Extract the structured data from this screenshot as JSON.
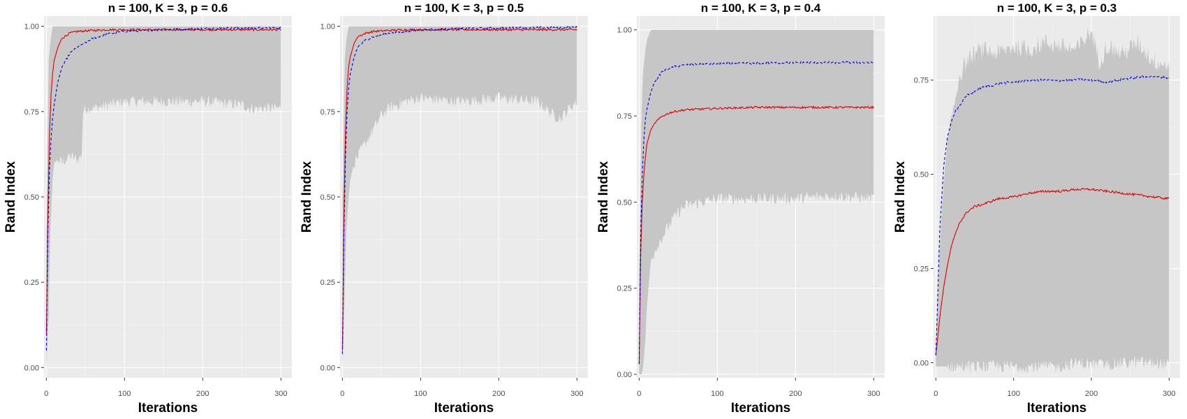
{
  "figure": {
    "colors": {
      "panel_bg": "#ebebeb",
      "grid_major": "#ffffff",
      "ribbon": "#c6c6c6",
      "red_series": "#e00000",
      "blue_series": "#0000e0",
      "tick_text": "#4d4d4d"
    }
  },
  "chart_data": [
    {
      "type": "line",
      "title": "n = 100, K = 3, p = 0.6",
      "xlabel": "Iterations",
      "ylabel": "Rand Index",
      "xlim": [
        -3,
        314
      ],
      "ylim": [
        -0.03,
        1.03
      ],
      "x_ticks": [
        0,
        100,
        200,
        300
      ],
      "x_tick_labels": [
        "0",
        "100",
        "200",
        "300"
      ],
      "y_ticks": [
        0,
        0.25,
        0.5,
        0.75,
        1.0
      ],
      "y_tick_labels": [
        "0.00",
        "0.25",
        "0.50",
        "0.75",
        "1.00"
      ],
      "ribbon": {
        "x": [
          0,
          3,
          5,
          8,
          10,
          15,
          20,
          30,
          40,
          45,
          47,
          50,
          60,
          80,
          100,
          150,
          200,
          250,
          260,
          280,
          300
        ],
        "lower": [
          0.0,
          0.15,
          0.4,
          0.55,
          0.6,
          0.61,
          0.6,
          0.62,
          0.61,
          0.62,
          0.75,
          0.76,
          0.76,
          0.77,
          0.78,
          0.78,
          0.78,
          0.77,
          0.76,
          0.76,
          0.76
        ],
        "upper": [
          0.4,
          0.9,
          0.95,
          1.0,
          1.0,
          1.0,
          1.0,
          1.0,
          1.0,
          1.0,
          1.0,
          1.0,
          1.0,
          1.0,
          1.0,
          1.0,
          1.0,
          1.0,
          1.0,
          1.0,
          1.0
        ]
      },
      "series": [
        {
          "name": "red",
          "style": "solid",
          "x": [
            0,
            2,
            4,
            6,
            8,
            10,
            15,
            20,
            30,
            40,
            60,
            80,
            100,
            150,
            200,
            250,
            300
          ],
          "values": [
            0.1,
            0.45,
            0.68,
            0.8,
            0.86,
            0.9,
            0.94,
            0.965,
            0.98,
            0.985,
            0.988,
            0.99,
            0.99,
            0.99,
            0.99,
            0.99,
            0.99
          ]
        },
        {
          "name": "blue",
          "style": "dashed",
          "x": [
            0,
            2,
            4,
            6,
            8,
            10,
            15,
            20,
            30,
            40,
            60,
            80,
            100,
            150,
            200,
            250,
            300
          ],
          "values": [
            0.05,
            0.4,
            0.58,
            0.67,
            0.73,
            0.77,
            0.84,
            0.88,
            0.92,
            0.94,
            0.965,
            0.978,
            0.985,
            0.99,
            0.993,
            0.995,
            0.996
          ]
        }
      ]
    },
    {
      "type": "line",
      "title": "n = 100, K = 3, p = 0.5",
      "xlabel": "Iterations",
      "ylabel": "Rand Index",
      "xlim": [
        -3,
        314
      ],
      "ylim": [
        -0.03,
        1.03
      ],
      "x_ticks": [
        0,
        100,
        200,
        300
      ],
      "x_tick_labels": [
        "0",
        "100",
        "200",
        "300"
      ],
      "y_ticks": [
        0,
        0.25,
        0.5,
        0.75,
        1.0
      ],
      "y_tick_labels": [
        "0.00",
        "0.25",
        "0.50",
        "0.75",
        "1.00"
      ],
      "ribbon": {
        "x": [
          0,
          3,
          5,
          8,
          10,
          15,
          20,
          30,
          40,
          50,
          60,
          80,
          100,
          150,
          200,
          250,
          270,
          280,
          290,
          300
        ],
        "lower": [
          0.0,
          0.2,
          0.4,
          0.5,
          0.55,
          0.6,
          0.62,
          0.66,
          0.7,
          0.74,
          0.76,
          0.78,
          0.79,
          0.78,
          0.79,
          0.78,
          0.74,
          0.73,
          0.76,
          0.78
        ],
        "upper": [
          0.5,
          0.9,
          0.96,
          1.0,
          1.0,
          1.0,
          1.0,
          1.0,
          1.0,
          1.0,
          1.0,
          1.0,
          1.0,
          1.0,
          1.0,
          1.0,
          1.0,
          1.0,
          1.0,
          1.0
        ]
      },
      "series": [
        {
          "name": "red",
          "style": "solid",
          "x": [
            0,
            2,
            4,
            6,
            8,
            10,
            15,
            20,
            30,
            40,
            60,
            80,
            100,
            150,
            200,
            250,
            300
          ],
          "values": [
            0.05,
            0.45,
            0.7,
            0.82,
            0.88,
            0.91,
            0.95,
            0.97,
            0.98,
            0.985,
            0.988,
            0.99,
            0.99,
            0.99,
            0.99,
            0.99,
            0.99
          ]
        },
        {
          "name": "blue",
          "style": "dashed",
          "x": [
            0,
            2,
            4,
            6,
            8,
            10,
            15,
            20,
            30,
            40,
            60,
            80,
            100,
            150,
            200,
            250,
            300
          ],
          "values": [
            0.04,
            0.4,
            0.62,
            0.75,
            0.82,
            0.86,
            0.91,
            0.94,
            0.96,
            0.97,
            0.98,
            0.985,
            0.99,
            0.993,
            0.995,
            0.996,
            0.997
          ]
        }
      ]
    },
    {
      "type": "line",
      "title": "n = 100, K = 3, p = 0.4",
      "xlabel": "Iterations",
      "ylabel": "Rand Index",
      "xlim": [
        -3,
        314
      ],
      "ylim": [
        -0.01,
        1.04
      ],
      "x_ticks": [
        0,
        100,
        200,
        300
      ],
      "x_tick_labels": [
        "0",
        "100",
        "200",
        "300"
      ],
      "y_ticks": [
        0,
        0.25,
        0.5,
        0.75,
        1.0
      ],
      "y_tick_labels": [
        "0.00",
        "0.25",
        "0.50",
        "0.75",
        "1.00"
      ],
      "ribbon": {
        "x": [
          0,
          3,
          5,
          8,
          10,
          15,
          20,
          30,
          40,
          50,
          60,
          80,
          100,
          150,
          200,
          250,
          300
        ],
        "lower": [
          0.0,
          0.0,
          0.02,
          0.1,
          0.2,
          0.33,
          0.36,
          0.4,
          0.44,
          0.47,
          0.49,
          0.5,
          0.51,
          0.51,
          0.51,
          0.52,
          0.51
        ],
        "upper": [
          0.3,
          0.75,
          0.88,
          0.94,
          0.97,
          1.0,
          1.0,
          1.0,
          1.0,
          1.0,
          1.0,
          1.0,
          1.0,
          1.0,
          1.0,
          1.0,
          1.0
        ]
      },
      "series": [
        {
          "name": "red",
          "style": "solid",
          "x": [
            0,
            2,
            4,
            6,
            8,
            10,
            15,
            20,
            30,
            40,
            50,
            60,
            80,
            100,
            150,
            200,
            250,
            300
          ],
          "values": [
            0.03,
            0.35,
            0.5,
            0.58,
            0.63,
            0.67,
            0.71,
            0.73,
            0.75,
            0.76,
            0.765,
            0.768,
            0.77,
            0.772,
            0.775,
            0.775,
            0.775,
            0.775
          ]
        },
        {
          "name": "blue",
          "style": "dashed",
          "x": [
            0,
            2,
            4,
            6,
            8,
            10,
            15,
            20,
            30,
            40,
            50,
            60,
            80,
            100,
            150,
            200,
            250,
            300
          ],
          "values": [
            0.03,
            0.4,
            0.58,
            0.68,
            0.74,
            0.77,
            0.82,
            0.85,
            0.88,
            0.89,
            0.895,
            0.898,
            0.9,
            0.902,
            0.903,
            0.905,
            0.905,
            0.905
          ]
        }
      ]
    },
    {
      "type": "line",
      "title": "n = 100, K = 3, p = 0.3",
      "xlabel": "Iterations",
      "ylabel": "Rand Index",
      "xlim": [
        -3,
        314
      ],
      "ylim": [
        -0.04,
        0.92
      ],
      "x_ticks": [
        0,
        100,
        200,
        300
      ],
      "x_tick_labels": [
        "0",
        "100",
        "200",
        "300"
      ],
      "y_ticks": [
        0,
        0.25,
        0.5,
        0.75
      ],
      "y_tick_labels": [
        "0.00",
        "0.25",
        "0.50",
        "0.75"
      ],
      "ribbon": {
        "x": [
          0,
          5,
          10,
          15,
          20,
          25,
          30,
          40,
          50,
          60,
          80,
          100,
          120,
          140,
          160,
          180,
          200,
          210,
          220,
          240,
          260,
          280,
          300
        ],
        "lower": [
          -0.01,
          -0.01,
          -0.01,
          -0.01,
          -0.01,
          -0.01,
          -0.01,
          -0.01,
          -0.01,
          -0.01,
          -0.01,
          -0.01,
          -0.01,
          -0.01,
          -0.01,
          0.0,
          -0.005,
          -0.005,
          -0.005,
          0.0,
          0.0,
          0.0,
          -0.005
        ],
        "upper": [
          0.05,
          0.3,
          0.48,
          0.58,
          0.64,
          0.7,
          0.76,
          0.8,
          0.82,
          0.83,
          0.82,
          0.84,
          0.83,
          0.85,
          0.84,
          0.83,
          0.88,
          0.8,
          0.84,
          0.82,
          0.85,
          0.8,
          0.79
        ]
      },
      "series": [
        {
          "name": "red",
          "style": "solid",
          "x": [
            0,
            5,
            10,
            15,
            20,
            25,
            30,
            40,
            50,
            60,
            80,
            100,
            120,
            140,
            160,
            180,
            200,
            220,
            240,
            260,
            280,
            300
          ],
          "values": [
            0.02,
            0.12,
            0.2,
            0.26,
            0.31,
            0.34,
            0.37,
            0.4,
            0.415,
            0.42,
            0.435,
            0.44,
            0.45,
            0.455,
            0.455,
            0.46,
            0.46,
            0.455,
            0.45,
            0.445,
            0.44,
            0.435
          ]
        },
        {
          "name": "blue",
          "style": "dashed",
          "x": [
            0,
            5,
            10,
            15,
            20,
            25,
            30,
            40,
            50,
            60,
            80,
            100,
            120,
            140,
            160,
            180,
            200,
            220,
            240,
            260,
            280,
            300
          ],
          "values": [
            0.02,
            0.35,
            0.52,
            0.6,
            0.64,
            0.67,
            0.68,
            0.71,
            0.72,
            0.73,
            0.74,
            0.745,
            0.75,
            0.75,
            0.748,
            0.752,
            0.75,
            0.745,
            0.752,
            0.758,
            0.76,
            0.755
          ]
        }
      ]
    }
  ]
}
